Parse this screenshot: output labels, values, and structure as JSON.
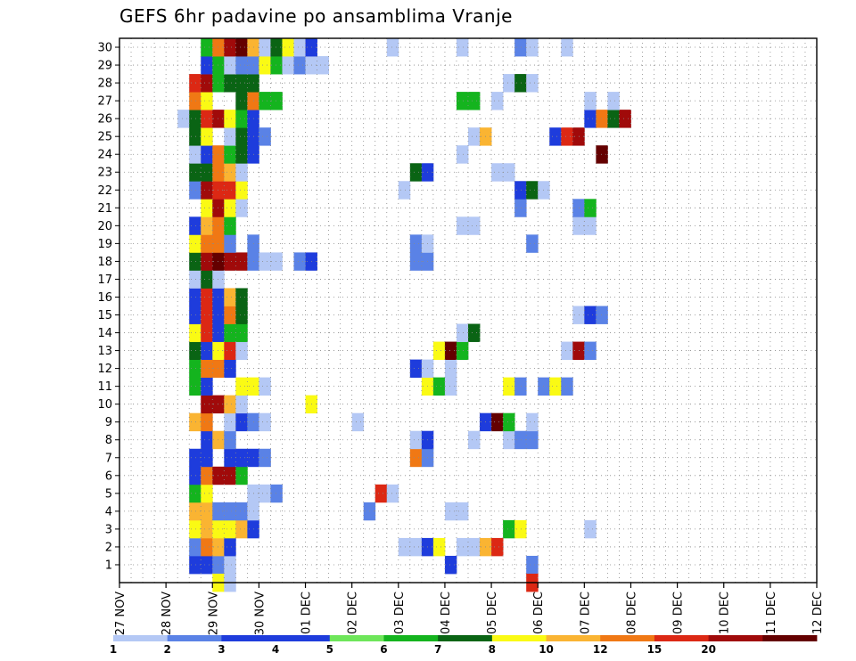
{
  "chart_data": {
    "type": "heatmap",
    "title": "GEFS 6hr padavine po ansamblima Vranje",
    "ylabel": "",
    "xlabel": "",
    "y_categories": [
      "1",
      "2",
      "3",
      "4",
      "5",
      "6",
      "7",
      "8",
      "9",
      "10",
      "11",
      "12",
      "13",
      "14",
      "15",
      "16",
      "17",
      "18",
      "19",
      "20",
      "21",
      "22",
      "23",
      "24",
      "25",
      "26",
      "27",
      "28",
      "29",
      "30"
    ],
    "x_tick_labels": [
      "27 NOV",
      "28 NOV",
      "29 NOV",
      "30 NOV",
      "01 DEC",
      "02 DEC",
      "03 DEC",
      "04 DEC",
      "05 DEC",
      "06 DEC",
      "07 DEC",
      "08 DEC",
      "09 DEC",
      "10 DEC",
      "11 DEC",
      "12 DEC"
    ],
    "x_step": "6hr",
    "grid": true,
    "legend_placement": "bottom",
    "colorbar": {
      "labels": [
        "1",
        "2",
        "3",
        "4",
        "5",
        "6",
        "7",
        "8",
        "10",
        "12",
        "15",
        "20"
      ],
      "colors": [
        "#b4c8f5",
        "#5a82e6",
        "#1e3cdc",
        "#1e3cdc",
        "#6ee65a",
        "#14b41e",
        "#0a6414",
        "#fafa14",
        "#fab432",
        "#f07814",
        "#dc2814",
        "#a00a0a",
        "#640000"
      ]
    },
    "values": [
      [
        1,
        6,
        3
      ],
      [
        1,
        7,
        3
      ],
      [
        1,
        8,
        2
      ],
      [
        1,
        9,
        1
      ],
      [
        1,
        28,
        3
      ],
      [
        1,
        35,
        2
      ],
      [
        2,
        6,
        2
      ],
      [
        2,
        7,
        10
      ],
      [
        2,
        8,
        8
      ],
      [
        2,
        9,
        3
      ],
      [
        2,
        24,
        1
      ],
      [
        2,
        25,
        1
      ],
      [
        2,
        26,
        3
      ],
      [
        2,
        27,
        7
      ],
      [
        2,
        29,
        1
      ],
      [
        2,
        30,
        1
      ],
      [
        2,
        31,
        8
      ],
      [
        2,
        32,
        12
      ],
      [
        3,
        6,
        7
      ],
      [
        3,
        7,
        8
      ],
      [
        3,
        8,
        7
      ],
      [
        3,
        9,
        7
      ],
      [
        3,
        10,
        8
      ],
      [
        3,
        11,
        3
      ],
      [
        3,
        33,
        5
      ],
      [
        3,
        34,
        7
      ],
      [
        3,
        40,
        1
      ],
      [
        4,
        6,
        8
      ],
      [
        4,
        7,
        8
      ],
      [
        4,
        8,
        2
      ],
      [
        4,
        9,
        2
      ],
      [
        4,
        10,
        2
      ],
      [
        4,
        11,
        1
      ],
      [
        4,
        21,
        2
      ],
      [
        4,
        28,
        1
      ],
      [
        4,
        29,
        1
      ],
      [
        5,
        6,
        5
      ],
      [
        5,
        7,
        7
      ],
      [
        5,
        11,
        1
      ],
      [
        5,
        12,
        1
      ],
      [
        5,
        13,
        2
      ],
      [
        5,
        22,
        12
      ],
      [
        5,
        23,
        1
      ],
      [
        6,
        6,
        3
      ],
      [
        6,
        7,
        10
      ],
      [
        6,
        8,
        15
      ],
      [
        6,
        9,
        15
      ],
      [
        6,
        10,
        5
      ],
      [
        7,
        6,
        3
      ],
      [
        7,
        7,
        3
      ],
      [
        7,
        9,
        3
      ],
      [
        7,
        10,
        3
      ],
      [
        7,
        11,
        3
      ],
      [
        7,
        12,
        2
      ],
      [
        7,
        25,
        10
      ],
      [
        7,
        26,
        2
      ],
      [
        8,
        7,
        3
      ],
      [
        8,
        8,
        8
      ],
      [
        8,
        9,
        2
      ],
      [
        8,
        25,
        1
      ],
      [
        8,
        26,
        3
      ],
      [
        8,
        30,
        1
      ],
      [
        8,
        33,
        1
      ],
      [
        8,
        34,
        2
      ],
      [
        8,
        35,
        2
      ],
      [
        9,
        6,
        8
      ],
      [
        9,
        7,
        10
      ],
      [
        9,
        9,
        1
      ],
      [
        9,
        10,
        3
      ],
      [
        9,
        11,
        2
      ],
      [
        9,
        12,
        1
      ],
      [
        9,
        20,
        1
      ],
      [
        9,
        31,
        3
      ],
      [
        9,
        32,
        20
      ],
      [
        9,
        33,
        5
      ],
      [
        9,
        35,
        1
      ],
      [
        10,
        7,
        15
      ],
      [
        10,
        8,
        15
      ],
      [
        10,
        9,
        8
      ],
      [
        10,
        10,
        1
      ],
      [
        10,
        16,
        7
      ],
      [
        11,
        6,
        5
      ],
      [
        11,
        7,
        3
      ],
      [
        11,
        10,
        7
      ],
      [
        11,
        11,
        7
      ],
      [
        11,
        12,
        1
      ],
      [
        11,
        26,
        7
      ],
      [
        11,
        27,
        5
      ],
      [
        11,
        28,
        1
      ],
      [
        11,
        33,
        7
      ],
      [
        11,
        34,
        2
      ],
      [
        11,
        36,
        2
      ],
      [
        11,
        37,
        7
      ],
      [
        11,
        38,
        2
      ],
      [
        12,
        6,
        5
      ],
      [
        12,
        7,
        10
      ],
      [
        12,
        8,
        10
      ],
      [
        12,
        9,
        3
      ],
      [
        12,
        25,
        3
      ],
      [
        12,
        26,
        1
      ],
      [
        12,
        28,
        1
      ],
      [
        13,
        6,
        6
      ],
      [
        13,
        7,
        3
      ],
      [
        13,
        8,
        7
      ],
      [
        13,
        9,
        12
      ],
      [
        13,
        10,
        1
      ],
      [
        13,
        27,
        7
      ],
      [
        13,
        28,
        20
      ],
      [
        13,
        29,
        5
      ],
      [
        13,
        38,
        1
      ],
      [
        13,
        39,
        15
      ],
      [
        13,
        40,
        2
      ],
      [
        14,
        6,
        7
      ],
      [
        14,
        7,
        12
      ],
      [
        14,
        8,
        3
      ],
      [
        14,
        9,
        5
      ],
      [
        14,
        10,
        5
      ],
      [
        14,
        29,
        1
      ],
      [
        14,
        30,
        6
      ],
      [
        15,
        6,
        3
      ],
      [
        15,
        7,
        12
      ],
      [
        15,
        8,
        3
      ],
      [
        15,
        9,
        10
      ],
      [
        15,
        10,
        6
      ],
      [
        15,
        39,
        1
      ],
      [
        15,
        40,
        3
      ],
      [
        15,
        41,
        2
      ],
      [
        16,
        6,
        3
      ],
      [
        16,
        7,
        12
      ],
      [
        16,
        8,
        3
      ],
      [
        16,
        9,
        8
      ],
      [
        16,
        10,
        6
      ],
      [
        17,
        6,
        1
      ],
      [
        17,
        7,
        6
      ],
      [
        17,
        8,
        1
      ],
      [
        18,
        6,
        6
      ],
      [
        18,
        7,
        15
      ],
      [
        18,
        8,
        20
      ],
      [
        18,
        9,
        15
      ],
      [
        18,
        10,
        15
      ],
      [
        18,
        11,
        2
      ],
      [
        18,
        12,
        1
      ],
      [
        18,
        13,
        1
      ],
      [
        18,
        15,
        2
      ],
      [
        18,
        16,
        3
      ],
      [
        18,
        25,
        2
      ],
      [
        18,
        26,
        2
      ],
      [
        19,
        6,
        7
      ],
      [
        19,
        7,
        10
      ],
      [
        19,
        8,
        10
      ],
      [
        19,
        9,
        2
      ],
      [
        19,
        11,
        2
      ],
      [
        19,
        25,
        2
      ],
      [
        19,
        26,
        1
      ],
      [
        19,
        35,
        2
      ],
      [
        20,
        6,
        3
      ],
      [
        20,
        7,
        8
      ],
      [
        20,
        8,
        10
      ],
      [
        20,
        9,
        5
      ],
      [
        20,
        29,
        1
      ],
      [
        20,
        30,
        1
      ],
      [
        20,
        39,
        1
      ],
      [
        20,
        40,
        1
      ],
      [
        21,
        7,
        7
      ],
      [
        21,
        8,
        15
      ],
      [
        21,
        9,
        7
      ],
      [
        21,
        10,
        1
      ],
      [
        21,
        34,
        2
      ],
      [
        21,
        39,
        2
      ],
      [
        21,
        40,
        5
      ],
      [
        22,
        6,
        2
      ],
      [
        22,
        7,
        15
      ],
      [
        22,
        8,
        12
      ],
      [
        22,
        9,
        12
      ],
      [
        22,
        10,
        7
      ],
      [
        22,
        24,
        1
      ],
      [
        22,
        34,
        3
      ],
      [
        22,
        35,
        6
      ],
      [
        22,
        36,
        1
      ],
      [
        23,
        6,
        6
      ],
      [
        23,
        7,
        6
      ],
      [
        23,
        8,
        10
      ],
      [
        23,
        9,
        8
      ],
      [
        23,
        10,
        1
      ],
      [
        23,
        25,
        6
      ],
      [
        23,
        26,
        3
      ],
      [
        23,
        32,
        1
      ],
      [
        23,
        33,
        1
      ],
      [
        24,
        6,
        1
      ],
      [
        24,
        7,
        3
      ],
      [
        24,
        8,
        10
      ],
      [
        24,
        9,
        5
      ],
      [
        24,
        10,
        6
      ],
      [
        24,
        11,
        3
      ],
      [
        24,
        29,
        1
      ],
      [
        24,
        41,
        20
      ],
      [
        25,
        6,
        6
      ],
      [
        25,
        7,
        7
      ],
      [
        25,
        9,
        1
      ],
      [
        25,
        10,
        6
      ],
      [
        25,
        11,
        3
      ],
      [
        25,
        12,
        2
      ],
      [
        25,
        30,
        1
      ],
      [
        25,
        31,
        8
      ],
      [
        25,
        37,
        3
      ],
      [
        25,
        38,
        12
      ],
      [
        25,
        39,
        15
      ],
      [
        26,
        5,
        1
      ],
      [
        26,
        6,
        6
      ],
      [
        26,
        7,
        12
      ],
      [
        26,
        8,
        15
      ],
      [
        26,
        9,
        7
      ],
      [
        26,
        10,
        5
      ],
      [
        26,
        11,
        3
      ],
      [
        26,
        40,
        3
      ],
      [
        26,
        41,
        10
      ],
      [
        26,
        42,
        6
      ],
      [
        26,
        43,
        15
      ],
      [
        27,
        6,
        10
      ],
      [
        27,
        7,
        7
      ],
      [
        27,
        10,
        6
      ],
      [
        27,
        11,
        10
      ],
      [
        27,
        12,
        5
      ],
      [
        27,
        13,
        5
      ],
      [
        27,
        29,
        5
      ],
      [
        27,
        30,
        5
      ],
      [
        27,
        32,
        1
      ],
      [
        27,
        40,
        1
      ],
      [
        27,
        42,
        1
      ],
      [
        28,
        6,
        12
      ],
      [
        28,
        7,
        15
      ],
      [
        28,
        8,
        5
      ],
      [
        28,
        9,
        6
      ],
      [
        28,
        10,
        6
      ],
      [
        28,
        11,
        6
      ],
      [
        28,
        33,
        1
      ],
      [
        28,
        34,
        6
      ],
      [
        28,
        35,
        1
      ],
      [
        29,
        7,
        3
      ],
      [
        29,
        8,
        5
      ],
      [
        29,
        9,
        1
      ],
      [
        29,
        10,
        2
      ],
      [
        29,
        11,
        2
      ],
      [
        29,
        12,
        7
      ],
      [
        29,
        13,
        5
      ],
      [
        29,
        14,
        1
      ],
      [
        29,
        15,
        2
      ],
      [
        29,
        16,
        1
      ],
      [
        29,
        17,
        1
      ],
      [
        30,
        7,
        5
      ],
      [
        30,
        8,
        10
      ],
      [
        30,
        9,
        15
      ],
      [
        30,
        10,
        20
      ],
      [
        30,
        11,
        8
      ],
      [
        30,
        12,
        1
      ],
      [
        30,
        13,
        6
      ],
      [
        30,
        14,
        7
      ],
      [
        30,
        15,
        1
      ],
      [
        30,
        16,
        3
      ],
      [
        30,
        23,
        1
      ],
      [
        30,
        29,
        1
      ],
      [
        30,
        34,
        2
      ],
      [
        30,
        35,
        1
      ],
      [
        30,
        38,
        1
      ],
      [
        0,
        8,
        7
      ],
      [
        0,
        9,
        1
      ],
      [
        0,
        35,
        12
      ]
    ]
  }
}
